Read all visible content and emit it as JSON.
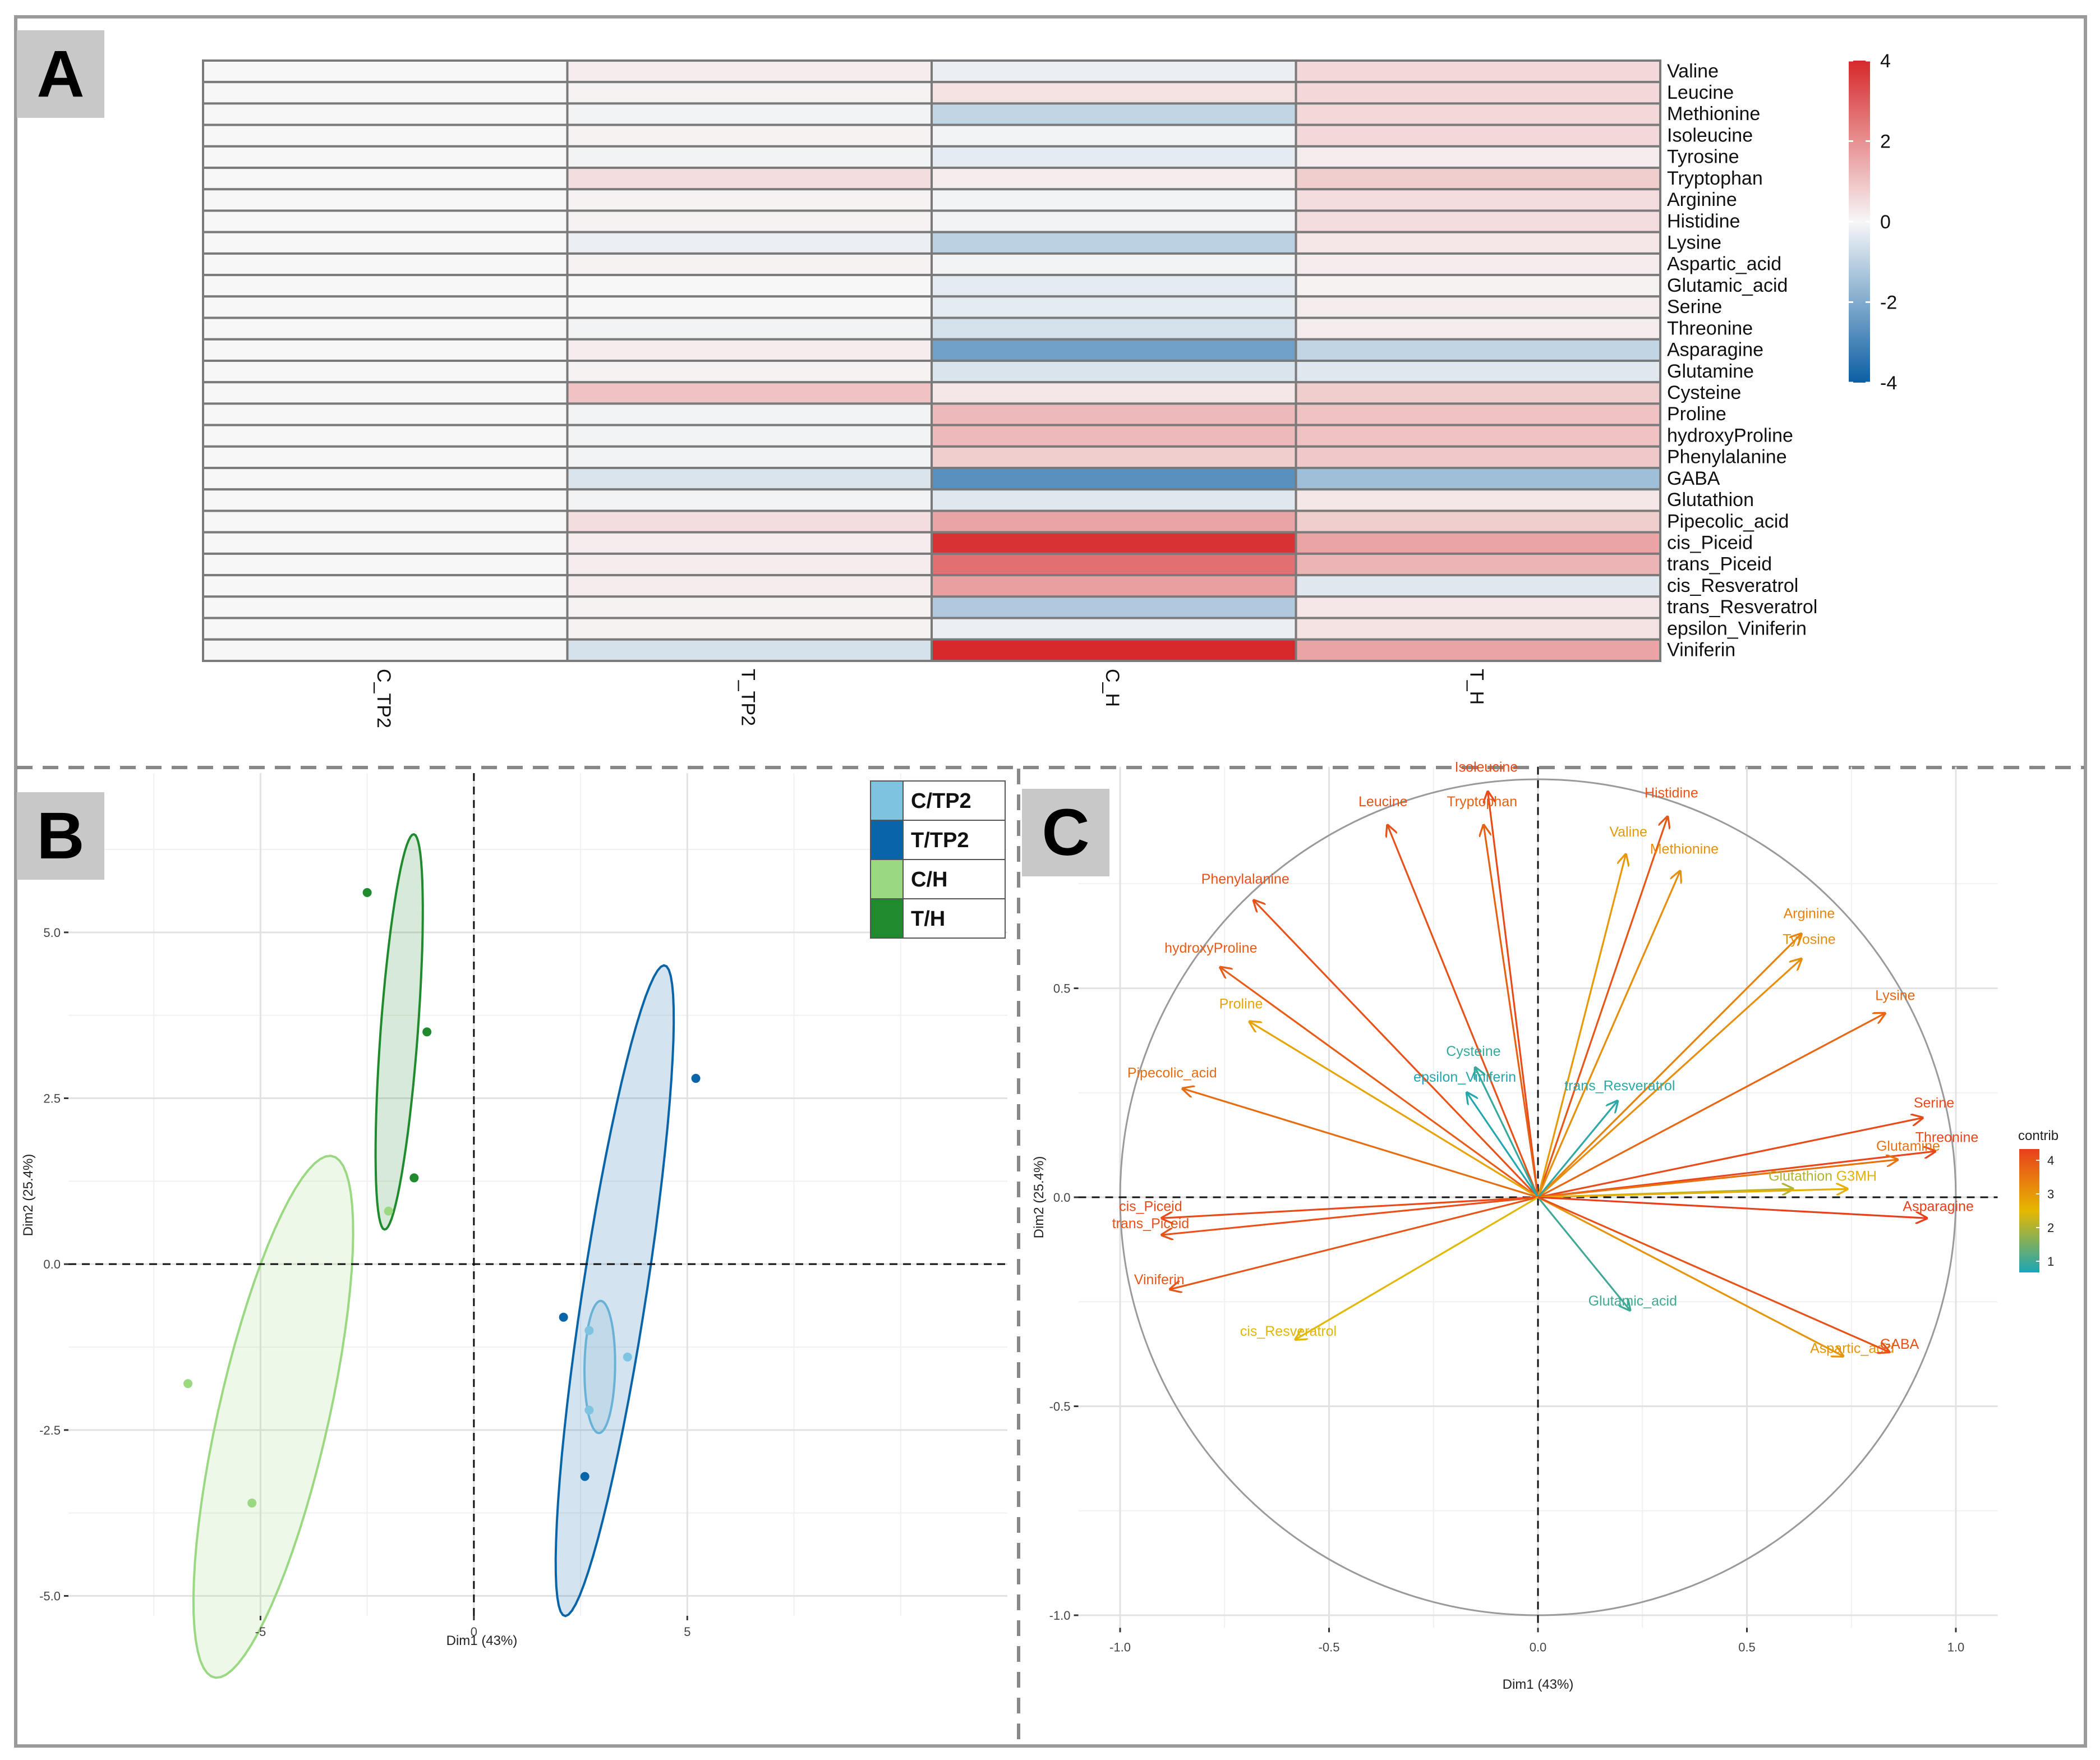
{
  "panel_labels": {
    "a": "A",
    "b": "B",
    "c": "C"
  },
  "chart_data": [
    {
      "type": "heatmap",
      "panel": "A",
      "columns": [
        "C_TP2",
        "T_TP2",
        "C_H",
        "T_H"
      ],
      "rows": [
        "Valine",
        "Leucine",
        "Methionine",
        "Isoleucine",
        "Tyrosine",
        "Tryptophan",
        "Arginine",
        "Histidine",
        "Lysine",
        "Aspartic_acid",
        "Glutamic_acid",
        "Serine",
        "Threonine",
        "Asparagine",
        "Glutamine",
        "Cysteine",
        "Proline",
        "hydroxyProline",
        "Phenylalanine",
        "GABA",
        "Glutathion",
        "Pipecolic_acid",
        "cis_Piceid",
        "trans_Piceid",
        "cis_Resveratrol",
        "trans_Resveratrol",
        "epsilon_Viniferin",
        "Viniferin"
      ],
      "values": [
        [
          0,
          0.2,
          -0.2,
          0.6
        ],
        [
          0,
          0.1,
          0.4,
          0.6
        ],
        [
          0,
          -0.1,
          -0.9,
          0.6
        ],
        [
          0,
          0.1,
          -0.1,
          0.6
        ],
        [
          0,
          -0.1,
          -0.3,
          0.2
        ],
        [
          0,
          0.5,
          0.2,
          0.8
        ],
        [
          0,
          0.1,
          -0.1,
          0.5
        ],
        [
          0,
          0.1,
          -0.1,
          0.5
        ],
        [
          0,
          -0.2,
          -1.0,
          0.3
        ],
        [
          0,
          0.1,
          -0.1,
          0.2
        ],
        [
          0,
          0.0,
          -0.3,
          0.1
        ],
        [
          0,
          0.0,
          -0.3,
          0.2
        ],
        [
          0,
          -0.1,
          -0.6,
          0.2
        ],
        [
          0,
          0.2,
          -2.3,
          -0.9
        ],
        [
          0,
          0.1,
          -0.5,
          -0.4
        ],
        [
          0,
          1.0,
          0.3,
          0.8
        ],
        [
          0,
          -0.1,
          1.2,
          1.0
        ],
        [
          0,
          -0.1,
          1.2,
          1.0
        ],
        [
          0,
          -0.1,
          0.8,
          0.9
        ],
        [
          0,
          -0.5,
          -2.7,
          -1.5
        ],
        [
          0,
          -0.1,
          -0.4,
          0.3
        ],
        [
          0,
          0.5,
          1.6,
          0.8
        ],
        [
          0,
          0.2,
          3.8,
          1.6
        ],
        [
          0,
          0.2,
          2.6,
          1.3
        ],
        [
          0,
          0.2,
          1.7,
          -0.4
        ],
        [
          0,
          0.1,
          -1.2,
          0.3
        ],
        [
          0,
          0.1,
          -0.2,
          0.4
        ],
        [
          0,
          -0.6,
          4.0,
          1.6
        ]
      ],
      "color_scale": {
        "min": -4,
        "max": 4,
        "ticks": [
          4,
          2,
          0,
          -2,
          -4
        ],
        "low_color": "#0c5fa3",
        "mid_color": "#f7f7f7",
        "high_color": "#d7282b"
      }
    },
    {
      "type": "scatter",
      "panel": "B",
      "xlabel": "Dim1 (43%)",
      "ylabel": "Dim2 (25.4%)",
      "xlim": [
        -9.5,
        12.5
      ],
      "ylim": [
        -5.3,
        7.4
      ],
      "xticks": [
        -5,
        0,
        5
      ],
      "yticks": [
        -5.0,
        -2.5,
        0.0,
        2.5,
        5.0
      ],
      "legend_position": "top-right",
      "series": [
        {
          "name": "C/TP2",
          "color": "#7ec3e0",
          "points": [
            [
              2.7,
              -1.0
            ],
            [
              3.6,
              -1.4
            ],
            [
              2.7,
              -2.2
            ]
          ],
          "ellipse": {
            "cx": 2.95,
            "cy": -1.55,
            "rx": 1.0,
            "ry": 0.85,
            "angle": 80
          }
        },
        {
          "name": "T/TP2",
          "color": "#0a64a8",
          "points": [
            [
              5.2,
              2.8
            ],
            [
              2.1,
              -0.8
            ],
            [
              2.6,
              -3.2
            ]
          ],
          "ellipse": {
            "cx": 3.3,
            "cy": -0.4,
            "rx": 5.7,
            "ry": 1.55,
            "angle": 58
          }
        },
        {
          "name": "C/H",
          "color": "#9bd882",
          "points": [
            [
              -2.0,
              0.8
            ],
            [
              -6.7,
              -1.8
            ],
            [
              -5.2,
              -3.6
            ]
          ],
          "ellipse": {
            "cx": -4.7,
            "cy": -2.3,
            "rx": 5.5,
            "ry": 2.25,
            "angle": 40
          }
        },
        {
          "name": "T/H",
          "color": "#1f8a2e",
          "points": [
            [
              -2.5,
              5.6
            ],
            [
              -1.1,
              3.5
            ],
            [
              -1.4,
              1.3
            ]
          ],
          "ellipse": {
            "cx": -1.75,
            "cy": 3.5,
            "rx": 3.1,
            "ry": 1.0,
            "angle": 73
          }
        }
      ]
    },
    {
      "type": "scatter",
      "subtype": "variable-correlation-circle",
      "panel": "C",
      "xlabel": "Dim1 (43%)",
      "ylabel": "Dim2 (25.4%)",
      "xlim": [
        -1.1,
        1.1
      ],
      "ylim": [
        -1.03,
        1.03
      ],
      "xticks": [
        -1.0,
        -0.5,
        0.0,
        0.5,
        1.0
      ],
      "yticks": [
        -1.0,
        -0.5,
        0.0,
        0.5
      ],
      "legend_title": "contrib",
      "legend_ticks": [
        4,
        3,
        2,
        1
      ],
      "legend_position": "right",
      "variables": [
        {
          "name": "Isoleucine",
          "x": -0.12,
          "y": 0.97,
          "contrib": 4.6
        },
        {
          "name": "Tryptophan",
          "x": -0.13,
          "y": 0.89,
          "contrib": 4.2
        },
        {
          "name": "Leucine",
          "x": -0.36,
          "y": 0.89,
          "contrib": 4.5
        },
        {
          "name": "Histidine",
          "x": 0.31,
          "y": 0.91,
          "contrib": 4.4
        },
        {
          "name": "Valine",
          "x": 0.21,
          "y": 0.82,
          "contrib": 3.2
        },
        {
          "name": "Methionine",
          "x": 0.34,
          "y": 0.78,
          "contrib": 3.4
        },
        {
          "name": "Phenylalanine",
          "x": -0.68,
          "y": 0.71,
          "contrib": 4.5
        },
        {
          "name": "hydroxyProline",
          "x": -0.76,
          "y": 0.55,
          "contrib": 4.3
        },
        {
          "name": "Arginine",
          "x": 0.63,
          "y": 0.63,
          "contrib": 3.6
        },
        {
          "name": "Tyrosine",
          "x": 0.63,
          "y": 0.57,
          "contrib": 3.4
        },
        {
          "name": "Proline",
          "x": -0.69,
          "y": 0.42,
          "contrib": 3.0
        },
        {
          "name": "Lysine",
          "x": 0.83,
          "y": 0.44,
          "contrib": 4.1
        },
        {
          "name": "Cysteine",
          "x": -0.15,
          "y": 0.31,
          "contrib": 0.8
        },
        {
          "name": "epsilon_Viniferin",
          "x": -0.17,
          "y": 0.25,
          "contrib": 0.6
        },
        {
          "name": "trans_Resveratrol",
          "x": 0.19,
          "y": 0.23,
          "contrib": 0.7
        },
        {
          "name": "Pipecolic_acid",
          "x": -0.85,
          "y": 0.26,
          "contrib": 4.0
        },
        {
          "name": "Serine",
          "x": 0.92,
          "y": 0.19,
          "contrib": 4.6
        },
        {
          "name": "Threonine",
          "x": 0.95,
          "y": 0.11,
          "contrib": 4.7
        },
        {
          "name": "Glutamine",
          "x": 0.86,
          "y": 0.09,
          "contrib": 3.9
        },
        {
          "name": "Glutathion",
          "x": 0.61,
          "y": 0.02,
          "contrib": 2.1
        },
        {
          "name": "G3MH",
          "x": 0.74,
          "y": 0.02,
          "contrib": 2.8
        },
        {
          "name": "Asparagine",
          "x": 0.93,
          "y": -0.05,
          "contrib": 4.8
        },
        {
          "name": "cis_Piceid",
          "x": -0.9,
          "y": -0.05,
          "contrib": 4.6
        },
        {
          "name": "trans_Piceid",
          "x": -0.9,
          "y": -0.09,
          "contrib": 4.5
        },
        {
          "name": "Viniferin",
          "x": -0.88,
          "y": -0.22,
          "contrib": 4.4
        },
        {
          "name": "Glutamic_acid",
          "x": 0.22,
          "y": -0.27,
          "contrib": 0.9
        },
        {
          "name": "cis_Resveratrol",
          "x": -0.58,
          "y": -0.34,
          "contrib": 2.6
        },
        {
          "name": "Aspartic_acid",
          "x": 0.73,
          "y": -0.38,
          "contrib": 3.3
        },
        {
          "name": "GABA",
          "x": 0.84,
          "y": -0.37,
          "contrib": 4.5
        }
      ]
    }
  ]
}
